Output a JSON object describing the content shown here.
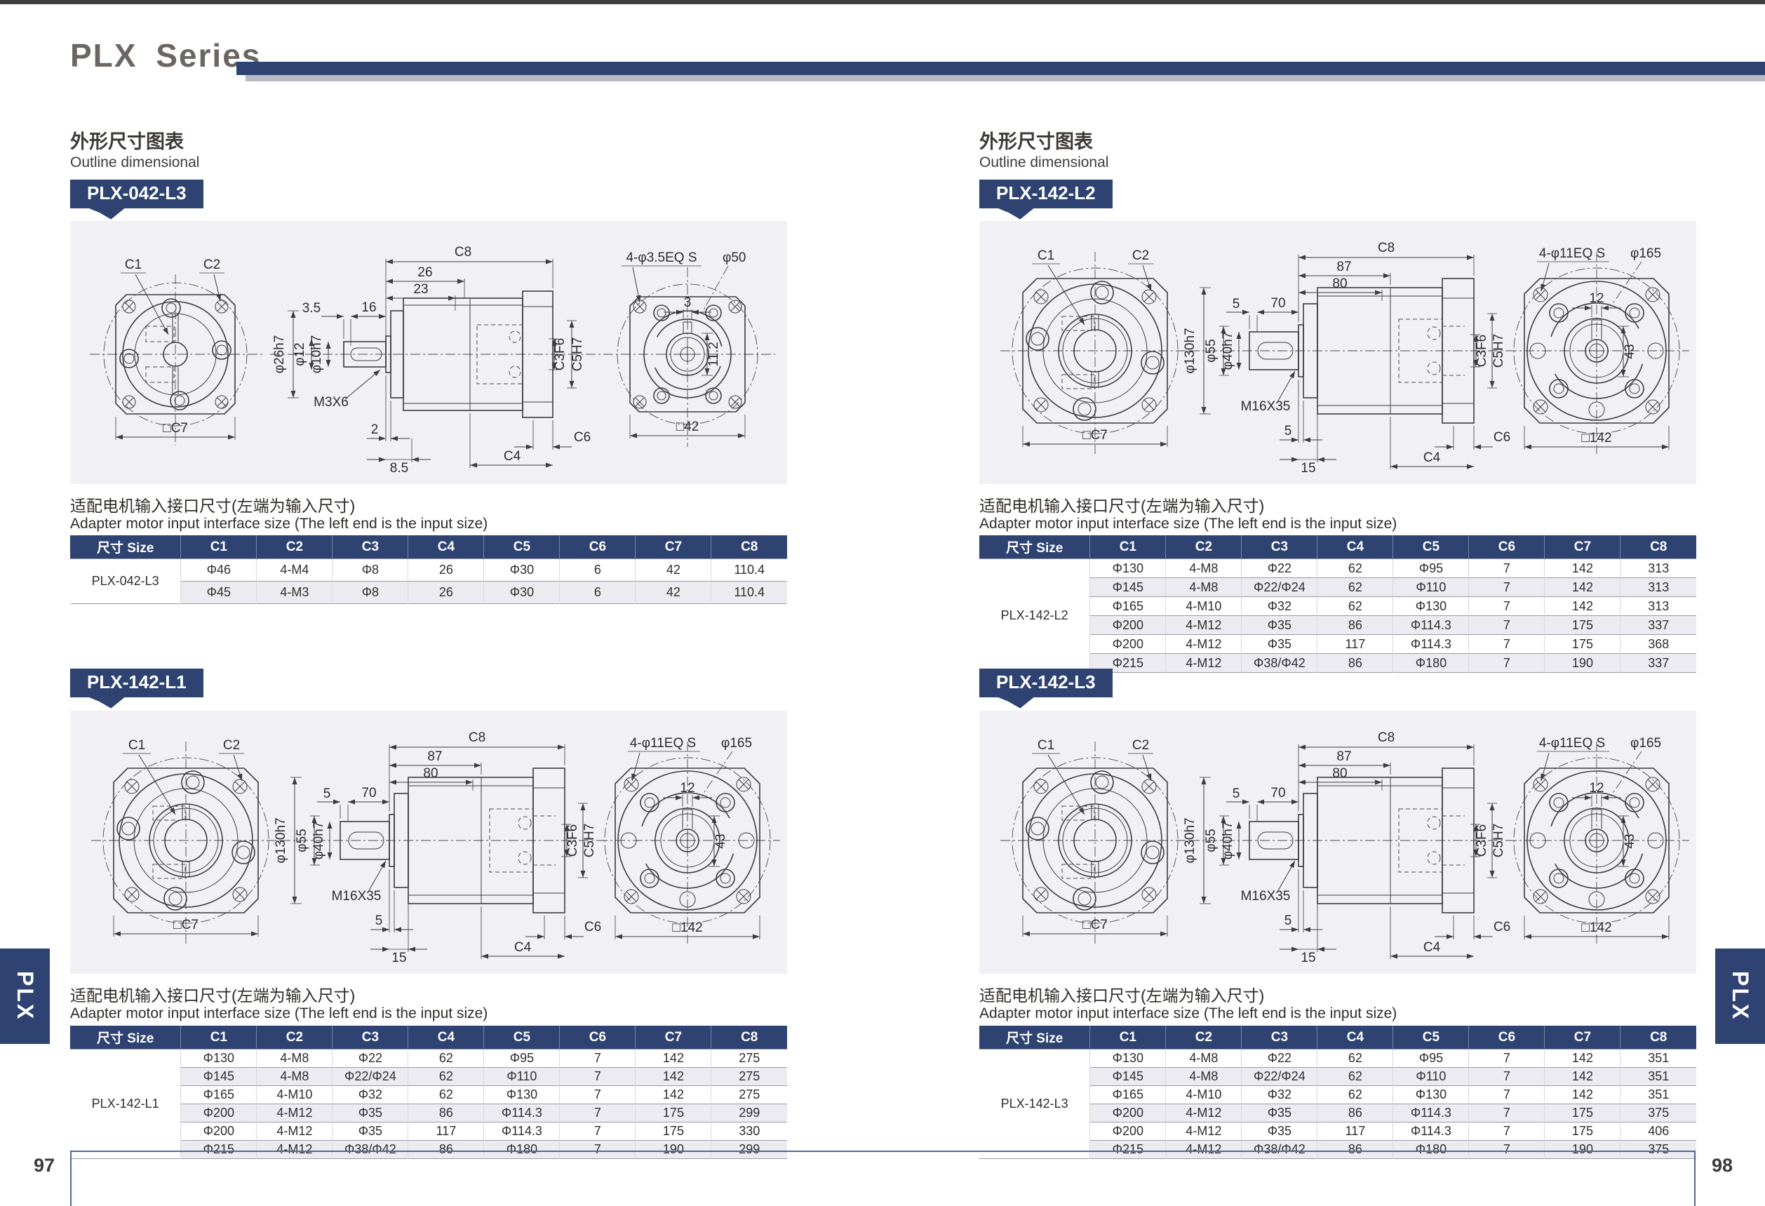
{
  "header": {
    "title": "PLX Series"
  },
  "tabs": {
    "left": "PLX",
    "right": "PLX"
  },
  "footer": {
    "left_page": "97",
    "right_page": "98"
  },
  "labels": {
    "outline_cn": "外形尺寸图表",
    "outline_en": "Outline dimensional",
    "adapter_cn": "适配电机输入接口尺寸(左端为输入尺寸)",
    "adapter_en": "Adapter motor input interface size (The left end is the input size)"
  },
  "table_headers": [
    "尺寸 Size",
    "C1",
    "C2",
    "C3",
    "C4",
    "C5",
    "C6",
    "C7",
    "C8"
  ],
  "sections": [
    {
      "badge": "PLX-042-L3",
      "size_label": "PLX-042-L3",
      "rows": [
        [
          "Φ46",
          "4-M4",
          "Φ8",
          "26",
          "Φ30",
          "6",
          "42",
          "110.4"
        ],
        [
          "Φ45",
          "4-M3",
          "Φ8",
          "26",
          "Φ30",
          "6",
          "42",
          "110.4"
        ]
      ]
    },
    {
      "badge": "PLX-142-L1",
      "size_label": "PLX-142-L1",
      "rows": [
        [
          "Φ130",
          "4-M8",
          "Φ22",
          "62",
          "Φ95",
          "7",
          "142",
          "275"
        ],
        [
          "Φ145",
          "4-M8",
          "Φ22/Φ24",
          "62",
          "Φ110",
          "7",
          "142",
          "275"
        ],
        [
          "Φ165",
          "4-M10",
          "Φ32",
          "62",
          "Φ130",
          "7",
          "142",
          "275"
        ],
        [
          "Φ200",
          "4-M12",
          "Φ35",
          "86",
          "Φ114.3",
          "7",
          "175",
          "299"
        ],
        [
          "Φ200",
          "4-M12",
          "Φ35",
          "117",
          "Φ114.3",
          "7",
          "175",
          "330"
        ],
        [
          "Φ215",
          "4-M12",
          "Φ38/Φ42",
          "86",
          "Φ180",
          "7",
          "190",
          "299"
        ]
      ]
    },
    {
      "badge": "PLX-142-L2",
      "size_label": "PLX-142-L2",
      "rows": [
        [
          "Φ130",
          "4-M8",
          "Φ22",
          "62",
          "Φ95",
          "7",
          "142",
          "313"
        ],
        [
          "Φ145",
          "4-M8",
          "Φ22/Φ24",
          "62",
          "Φ110",
          "7",
          "142",
          "313"
        ],
        [
          "Φ165",
          "4-M10",
          "Φ32",
          "62",
          "Φ130",
          "7",
          "142",
          "313"
        ],
        [
          "Φ200",
          "4-M12",
          "Φ35",
          "86",
          "Φ114.3",
          "7",
          "175",
          "337"
        ],
        [
          "Φ200",
          "4-M12",
          "Φ35",
          "117",
          "Φ114.3",
          "7",
          "175",
          "368"
        ],
        [
          "Φ215",
          "4-M12",
          "Φ38/Φ42",
          "86",
          "Φ180",
          "7",
          "190",
          "337"
        ]
      ]
    },
    {
      "badge": "PLX-142-L3",
      "size_label": "PLX-142-L3",
      "rows": [
        [
          "Φ130",
          "4-M8",
          "Φ22",
          "62",
          "Φ95",
          "7",
          "142",
          "351"
        ],
        [
          "Φ145",
          "4-M8",
          "Φ22/Φ24",
          "62",
          "Φ110",
          "7",
          "142",
          "351"
        ],
        [
          "Φ165",
          "4-M10",
          "Φ32",
          "62",
          "Φ130",
          "7",
          "142",
          "351"
        ],
        [
          "Φ200",
          "4-M12",
          "Φ35",
          "86",
          "Φ114.3",
          "7",
          "175",
          "375"
        ],
        [
          "Φ200",
          "4-M12",
          "Φ35",
          "117",
          "Φ114.3",
          "7",
          "175",
          "406"
        ],
        [
          "Φ215",
          "4-M12",
          "Φ38/Φ42",
          "86",
          "Φ180",
          "7",
          "190",
          "375"
        ]
      ]
    }
  ],
  "drw042": {
    "c1": "C1",
    "c2": "C2",
    "sq_c7": "□C7",
    "c8": "C8",
    "len1": "26",
    "len2": "23",
    "len3": "16",
    "len4": "3.5",
    "dia_body": "φ26h7",
    "dia_step": "φ12",
    "dia_shaft": "φ10h7",
    "tap": "M3X6",
    "bot1": "2",
    "bot2": "8.5",
    "c3": "C3F6",
    "c5": "C5H7",
    "c6": "C6",
    "c4": "C4",
    "bolts": "4-φ3.5EQ S",
    "dia_bc": "φ50",
    "key_w": "3",
    "key_h": "11.2",
    "sq_out": "□42"
  },
  "drw142": {
    "c1": "C1",
    "c2": "C2",
    "sq_c7": "□C7",
    "c8": "C8",
    "len1": "87",
    "len2": "80",
    "len3": "70",
    "len4": "5",
    "dia_body": "φ130h7",
    "dia_step": "φ55",
    "dia_shaft": "φ40h7",
    "tap": "M16X35",
    "bot1": "5",
    "bot2": "15",
    "c3": "C3F6",
    "c5": "C5H7",
    "c6": "C6",
    "c4": "C4",
    "bolts": "4-φ11EQ S",
    "dia_bc": "φ165",
    "key_w": "12",
    "key_h": "43",
    "sq_out": "□142"
  },
  "colors": {
    "navy": "#2e4372",
    "panel_bg": "#f1f1f5",
    "stripe": "#ebebf1",
    "bar_gray": "#b7bac2"
  }
}
